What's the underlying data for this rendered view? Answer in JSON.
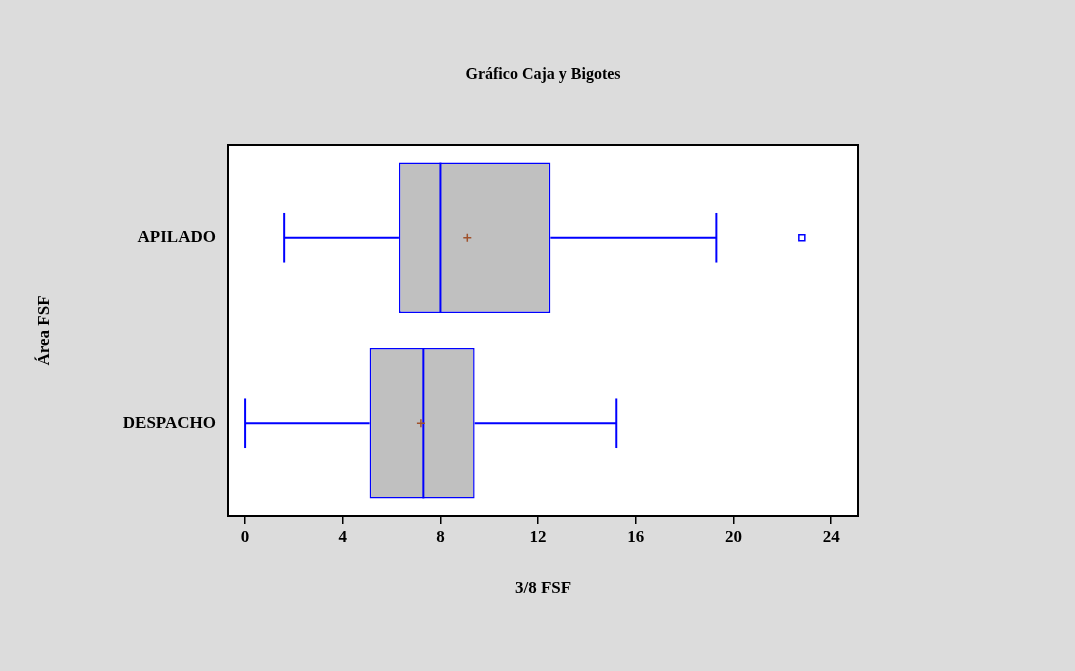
{
  "chart_data": {
    "type": "box",
    "title": "Gráfico Caja y Bigotes",
    "xlabel": "3/8 FSF",
    "ylabel": "Área FSF",
    "orientation": "horizontal",
    "categories": [
      "APILADO",
      "DESPACHO"
    ],
    "boxes": [
      {
        "low": 1.6,
        "q1": 6.3,
        "median": 8.0,
        "q3": 12.5,
        "high": 19.3,
        "mean": 9.1,
        "outliers": [
          22.8
        ]
      },
      {
        "low": 0.0,
        "q1": 5.1,
        "median": 7.3,
        "q3": 9.4,
        "high": 15.2,
        "mean": 7.2
      }
    ],
    "color": "#0000ff",
    "xlim": [
      -0.7,
      25.1
    ],
    "xticks": [
      0,
      4,
      8,
      12,
      16,
      20,
      24
    ],
    "grid": false,
    "legend": false
  }
}
